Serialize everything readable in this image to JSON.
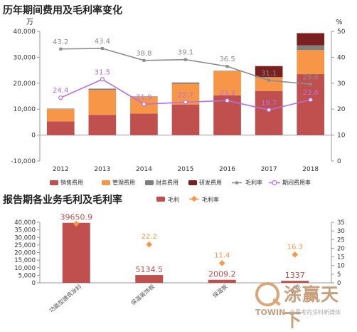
{
  "titles": {
    "chart1": "历年期间费用及毛利率变化",
    "chart2": "报告期各业务毛利及毛利率"
  },
  "watermark": {
    "brand_cn": "涂赢天下",
    "brand_en": "TOWIN",
    "slogan": "会思考的涂料新媒体"
  },
  "colors": {
    "sales": "#c0504d",
    "admin": "#f79646",
    "finance": "#7f7f7f",
    "rd": "#7b2020",
    "gross_line": "#8c8c8c",
    "period_line": "#b570e0",
    "profit_bar": "#c0504d",
    "margin_marker": "#f79646"
  },
  "chart_data": [
    {
      "type": "bar",
      "stacked": true,
      "title": "历年期间费用及毛利率变化",
      "y_unit_left": "万",
      "y_unit_right": "%",
      "categories": [
        "2012",
        "2013",
        "2014",
        "2015",
        "2016",
        "2017",
        "2018"
      ],
      "ylim": [
        -10000,
        40000
      ],
      "yticks": [
        "40,000",
        "30,000",
        "20,000",
        "10,000",
        "0",
        "-10,000"
      ],
      "y2lim": [
        0,
        50
      ],
      "y2ticks": [
        "50",
        "40",
        "30",
        "20",
        "10",
        "0"
      ],
      "series": [
        {
          "name": "销售费用",
          "values": [
            5300,
            7800,
            8300,
            11800,
            15300,
            17000,
            23500
          ]
        },
        {
          "name": "管理费用",
          "values": [
            4700,
            9600,
            6400,
            8000,
            9300,
            5200,
            9300
          ]
        },
        {
          "name": "财务费用",
          "values": [
            200,
            500,
            200,
            500,
            200,
            200,
            1800
          ]
        },
        {
          "name": "研发费用",
          "values": [
            0,
            0,
            0,
            0,
            0,
            4200,
            4700
          ]
        }
      ],
      "lines": [
        {
          "name": "毛利率",
          "values": [
            43.2,
            43.4,
            38.8,
            39.1,
            36.5,
            31.1,
            29.6
          ],
          "labels": [
            "43.2",
            "43.4",
            "38.8",
            "39.1",
            "36.5",
            "31.1",
            "29.6"
          ]
        },
        {
          "name": "期间费用率",
          "values": [
            24.4,
            31.5,
            21.9,
            22.7,
            23.3,
            19.7,
            23.6
          ],
          "labels": [
            "24.4",
            "31.5",
            "21.9",
            "22.7",
            "23.3",
            "19.7",
            "23.6"
          ]
        }
      ],
      "legend": [
        "销售费用",
        "管理费用",
        "财务费用",
        "研发费用",
        "毛利率",
        "期间费用率"
      ],
      "legend_position": "bottom"
    },
    {
      "type": "bar",
      "title": "报告期各业务毛利及毛利率",
      "categories": [
        "功能型建筑涂料",
        "保温装饰板",
        "保温板",
        "其他"
      ],
      "ylim": [
        0,
        40000
      ],
      "yticks": [
        "40,000",
        "35,000",
        "30,000",
        "25,000",
        "20,000",
        "15,000",
        "10,000",
        "5,000",
        "0"
      ],
      "y2lim": [
        0,
        35
      ],
      "y2ticks": [
        "35",
        "30",
        "25",
        "20",
        "15",
        "10",
        "5",
        "0"
      ],
      "series": [
        {
          "name": "毛利",
          "values": [
            39650.9,
            5134.5,
            2009.2,
            1337
          ],
          "labels": [
            "39650.9",
            "5134.5",
            "2009.2",
            "1337"
          ]
        },
        {
          "name": "毛利率",
          "values": [
            34.2,
            22.2,
            11.4,
            16.3
          ],
          "labels": [
            "",
            "22.2",
            "11.4",
            "16.3"
          ]
        }
      ],
      "legend": [
        "毛利",
        "毛利率"
      ],
      "legend_position": "top"
    }
  ]
}
